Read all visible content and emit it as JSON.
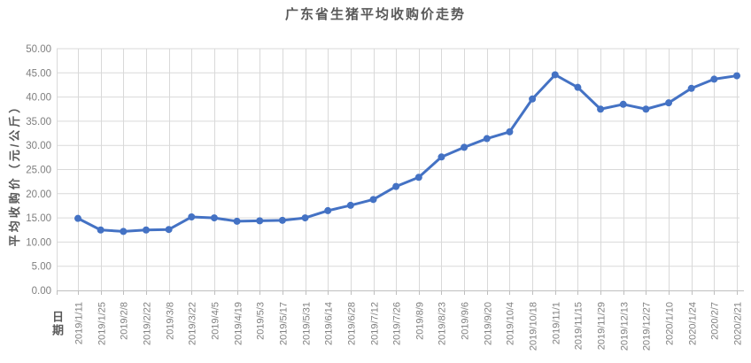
{
  "title": "广东省生猪平均收购价走势",
  "chart_data": {
    "type": "line",
    "title": "广东省生猪平均收购价走势",
    "xlabel": "日期",
    "ylabel": "平均收购价（元/公斤）",
    "categories": [
      "2019/1/11",
      "2019/1/25",
      "2019/2/8",
      "2019/2/22",
      "2019/3/8",
      "2019/3/22",
      "2019/4/5",
      "2019/4/19",
      "2019/5/3",
      "2019/5/17",
      "2019/5/31",
      "2019/6/14",
      "2019/6/28",
      "2019/7/12",
      "2019/7/26",
      "2019/8/9",
      "2019/8/23",
      "2019/9/6",
      "2019/9/20",
      "2019/10/4",
      "2019/10/18",
      "2019/11/1",
      "2019/11/15",
      "2019/11/29",
      "2019/12/13",
      "2019/12/27",
      "2020/1/10",
      "2020/1/24",
      "2020/2/7",
      "2020/2/21"
    ],
    "values": [
      14.9,
      12.5,
      12.2,
      12.5,
      12.6,
      15.2,
      15.0,
      14.3,
      14.4,
      14.5,
      15.0,
      16.5,
      17.6,
      18.8,
      21.5,
      23.4,
      27.6,
      29.6,
      31.4,
      32.8,
      39.6,
      44.6,
      42.0,
      37.5,
      38.5,
      37.5,
      38.8,
      41.8,
      43.7,
      44.4
    ],
    "ylim": [
      0,
      50
    ],
    "ytick_step": 5,
    "ytick_labels": [
      "0.00",
      "5.00",
      "10.00",
      "15.00",
      "20.00",
      "25.00",
      "30.00",
      "35.00",
      "40.00",
      "45.00",
      "50.00"
    ],
    "grid": "horizontal-and-vertical",
    "legend": "none",
    "colors": {
      "line": "#4472C4",
      "marker": "#4472C4",
      "gridline": "#D9D9D9",
      "axis": "#BFBFBF",
      "tick_label": "#7F7F7F",
      "title": "#595959"
    }
  }
}
